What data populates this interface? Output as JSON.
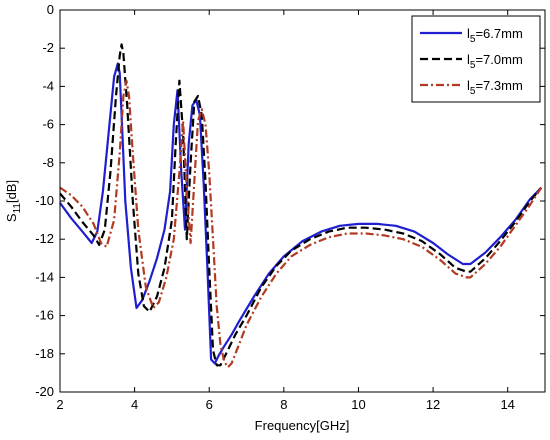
{
  "chart_data": {
    "type": "line",
    "xlabel": "Frequency[GHz]",
    "ylabel": {
      "main": "S",
      "sub": "11",
      "suffix": "[dB]"
    },
    "xlim": [
      2,
      15
    ],
    "ylim": [
      -20,
      0
    ],
    "xticks": [
      2,
      4,
      6,
      8,
      10,
      12,
      14
    ],
    "yticks": [
      0,
      -2,
      -4,
      -6,
      -8,
      -10,
      -12,
      -14,
      -16,
      -18,
      -20
    ],
    "grid": false,
    "legend_position": "top-right",
    "series": [
      {
        "name": "l5=6.7mm",
        "label": {
          "main": "l",
          "sub": "5",
          "suffix": "=6.7mm"
        },
        "color": "#1f1fcf",
        "dash": "",
        "x": [
          2.0,
          2.3,
          2.6,
          2.85,
          3.0,
          3.15,
          3.3,
          3.45,
          3.55,
          3.6,
          3.65,
          3.75,
          3.9,
          4.05,
          4.2,
          4.4,
          4.6,
          4.8,
          4.95,
          5.05,
          5.15,
          5.25,
          5.35,
          5.45,
          5.55,
          5.65,
          5.75,
          5.85,
          5.95,
          6.05,
          6.15,
          6.25,
          6.4,
          6.6,
          6.8,
          7.2,
          7.6,
          8.0,
          8.5,
          9.0,
          9.5,
          10.0,
          10.5,
          11.0,
          11.5,
          12.0,
          12.4,
          12.8,
          13.0,
          13.4,
          13.8,
          14.2,
          14.6,
          14.9
        ],
        "y": [
          -10.1,
          -10.9,
          -11.6,
          -12.2,
          -11.6,
          -9.5,
          -6.5,
          -3.5,
          -2.8,
          -3.3,
          -5.5,
          -10.0,
          -13.5,
          -15.6,
          -15.2,
          -14.2,
          -13.0,
          -11.5,
          -9.5,
          -6.0,
          -4.2,
          -8.5,
          -11.5,
          -7.0,
          -5.0,
          -4.7,
          -5.5,
          -9.0,
          -13.5,
          -18.3,
          -18.5,
          -18.1,
          -17.6,
          -17.0,
          -16.3,
          -15.0,
          -13.8,
          -12.9,
          -12.1,
          -11.6,
          -11.3,
          -11.2,
          -11.2,
          -11.3,
          -11.6,
          -12.2,
          -12.8,
          -13.3,
          -13.3,
          -12.7,
          -11.9,
          -11.0,
          -9.9,
          -9.3
        ]
      },
      {
        "name": "l5=7.0mm",
        "label": {
          "main": "l",
          "sub": "5",
          "suffix": "=7.0mm"
        },
        "color": "#000000",
        "dash": "8,4",
        "x": [
          2.0,
          2.3,
          2.6,
          2.9,
          3.05,
          3.2,
          3.35,
          3.5,
          3.6,
          3.65,
          3.7,
          3.8,
          3.95,
          4.1,
          4.25,
          4.4,
          4.6,
          4.8,
          5.0,
          5.1,
          5.2,
          5.3,
          5.4,
          5.5,
          5.6,
          5.7,
          5.8,
          5.9,
          6.0,
          6.1,
          6.2,
          6.3,
          6.5,
          6.7,
          7.0,
          7.4,
          7.8,
          8.2,
          8.7,
          9.2,
          9.7,
          10.2,
          10.7,
          11.2,
          11.7,
          12.2,
          12.6,
          12.9,
          13.0,
          13.4,
          13.8,
          14.2,
          14.6,
          14.9
        ],
        "y": [
          -9.6,
          -10.3,
          -11.1,
          -11.8,
          -12.3,
          -11.5,
          -8.5,
          -4.5,
          -2.4,
          -1.8,
          -2.3,
          -5.0,
          -10.0,
          -13.8,
          -15.5,
          -15.8,
          -15.0,
          -13.5,
          -11.0,
          -7.0,
          -3.7,
          -6.5,
          -12.0,
          -8.0,
          -4.8,
          -4.5,
          -5.5,
          -9.0,
          -13.5,
          -17.8,
          -18.6,
          -18.6,
          -17.8,
          -17.0,
          -16.0,
          -14.5,
          -13.4,
          -12.6,
          -12.0,
          -11.6,
          -11.4,
          -11.4,
          -11.5,
          -11.7,
          -12.1,
          -12.8,
          -13.5,
          -13.7,
          -13.7,
          -13.0,
          -12.1,
          -11.1,
          -10.0,
          -9.3
        ]
      },
      {
        "name": "l5=7.3mm",
        "label": {
          "main": "l",
          "sub": "5",
          "suffix": "=7.3mm"
        },
        "color": "#b33a22",
        "dash": "8,3,2,3",
        "x": [
          2.0,
          2.3,
          2.6,
          2.9,
          3.1,
          3.25,
          3.45,
          3.6,
          3.7,
          3.78,
          3.85,
          3.95,
          4.1,
          4.3,
          4.5,
          4.65,
          4.85,
          5.05,
          5.2,
          5.3,
          5.4,
          5.5,
          5.6,
          5.7,
          5.8,
          5.9,
          6.0,
          6.1,
          6.2,
          6.3,
          6.4,
          6.5,
          6.6,
          6.8,
          7.0,
          7.4,
          7.8,
          8.2,
          8.7,
          9.2,
          9.7,
          10.2,
          10.7,
          11.2,
          11.7,
          12.2,
          12.6,
          12.9,
          13.0,
          13.4,
          13.8,
          14.2,
          14.6,
          14.9
        ],
        "y": [
          -9.3,
          -9.7,
          -10.3,
          -11.2,
          -12.2,
          -12.4,
          -11.0,
          -7.5,
          -4.5,
          -3.7,
          -4.5,
          -7.5,
          -11.5,
          -14.5,
          -15.6,
          -15.3,
          -14.0,
          -12.0,
          -8.5,
          -5.8,
          -9.5,
          -12.2,
          -9.0,
          -5.8,
          -5.2,
          -6.0,
          -8.5,
          -12.0,
          -15.5,
          -17.5,
          -18.4,
          -18.7,
          -18.5,
          -17.5,
          -16.5,
          -15.0,
          -13.8,
          -12.9,
          -12.3,
          -11.9,
          -11.7,
          -11.7,
          -11.8,
          -12.0,
          -12.4,
          -13.1,
          -13.8,
          -14.0,
          -14.0,
          -13.3,
          -12.4,
          -11.3,
          -10.2,
          -9.3
        ]
      }
    ]
  }
}
